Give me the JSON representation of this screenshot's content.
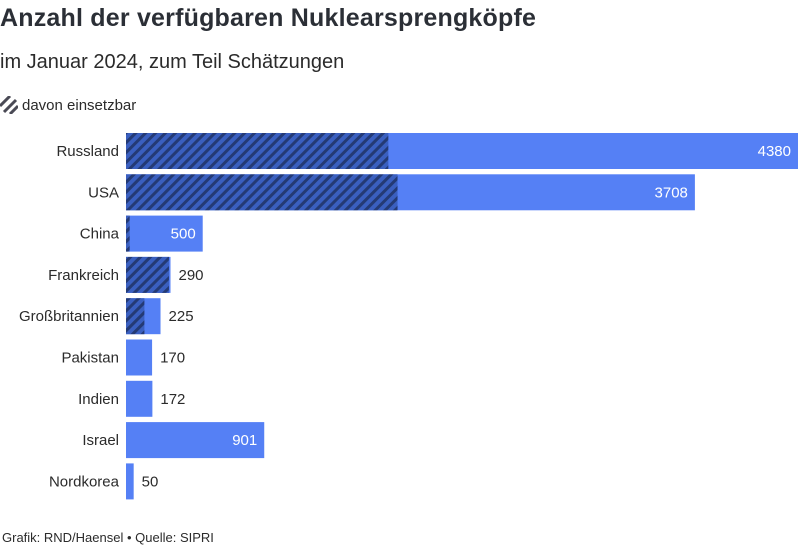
{
  "chart_data": {
    "type": "bar",
    "orientation": "horizontal",
    "title": "Anzahl der verfügbaren Nuklearsprengköpfe",
    "subtitle": "im Januar 2024, zum Teil Schätzungen",
    "legend": [
      {
        "label": "davon einsetzbar",
        "pattern": "hatched"
      }
    ],
    "categories": [
      "Russland",
      "USA",
      "China",
      "Frankreich",
      "Großbritannien",
      "Pakistan",
      "Indien",
      "Israel",
      "Nordkorea"
    ],
    "series": [
      {
        "values": [
          4380,
          3708,
          500,
          290,
          225,
          170,
          172,
          901,
          50
        ]
      },
      {
        "name": "davon einsetzbar",
        "values": [
          1710,
          1770,
          24,
          280,
          120,
          0,
          0,
          0,
          0
        ]
      }
    ],
    "value_labels": [
      "4380",
      "3708",
      "500",
      "290",
      "225",
      "170",
      "172",
      "901",
      "50"
    ],
    "xlim": [
      0,
      4380
    ],
    "grid": false
  },
  "source": "Grafik: RND/Haensel • Quelle: SIPRI",
  "colors": {
    "bar": "#5580f5",
    "hatch_bg": "#3a5fbf",
    "hatch_line": "#243a75",
    "text": "#2b2b2b",
    "title": "#2b2f36"
  }
}
